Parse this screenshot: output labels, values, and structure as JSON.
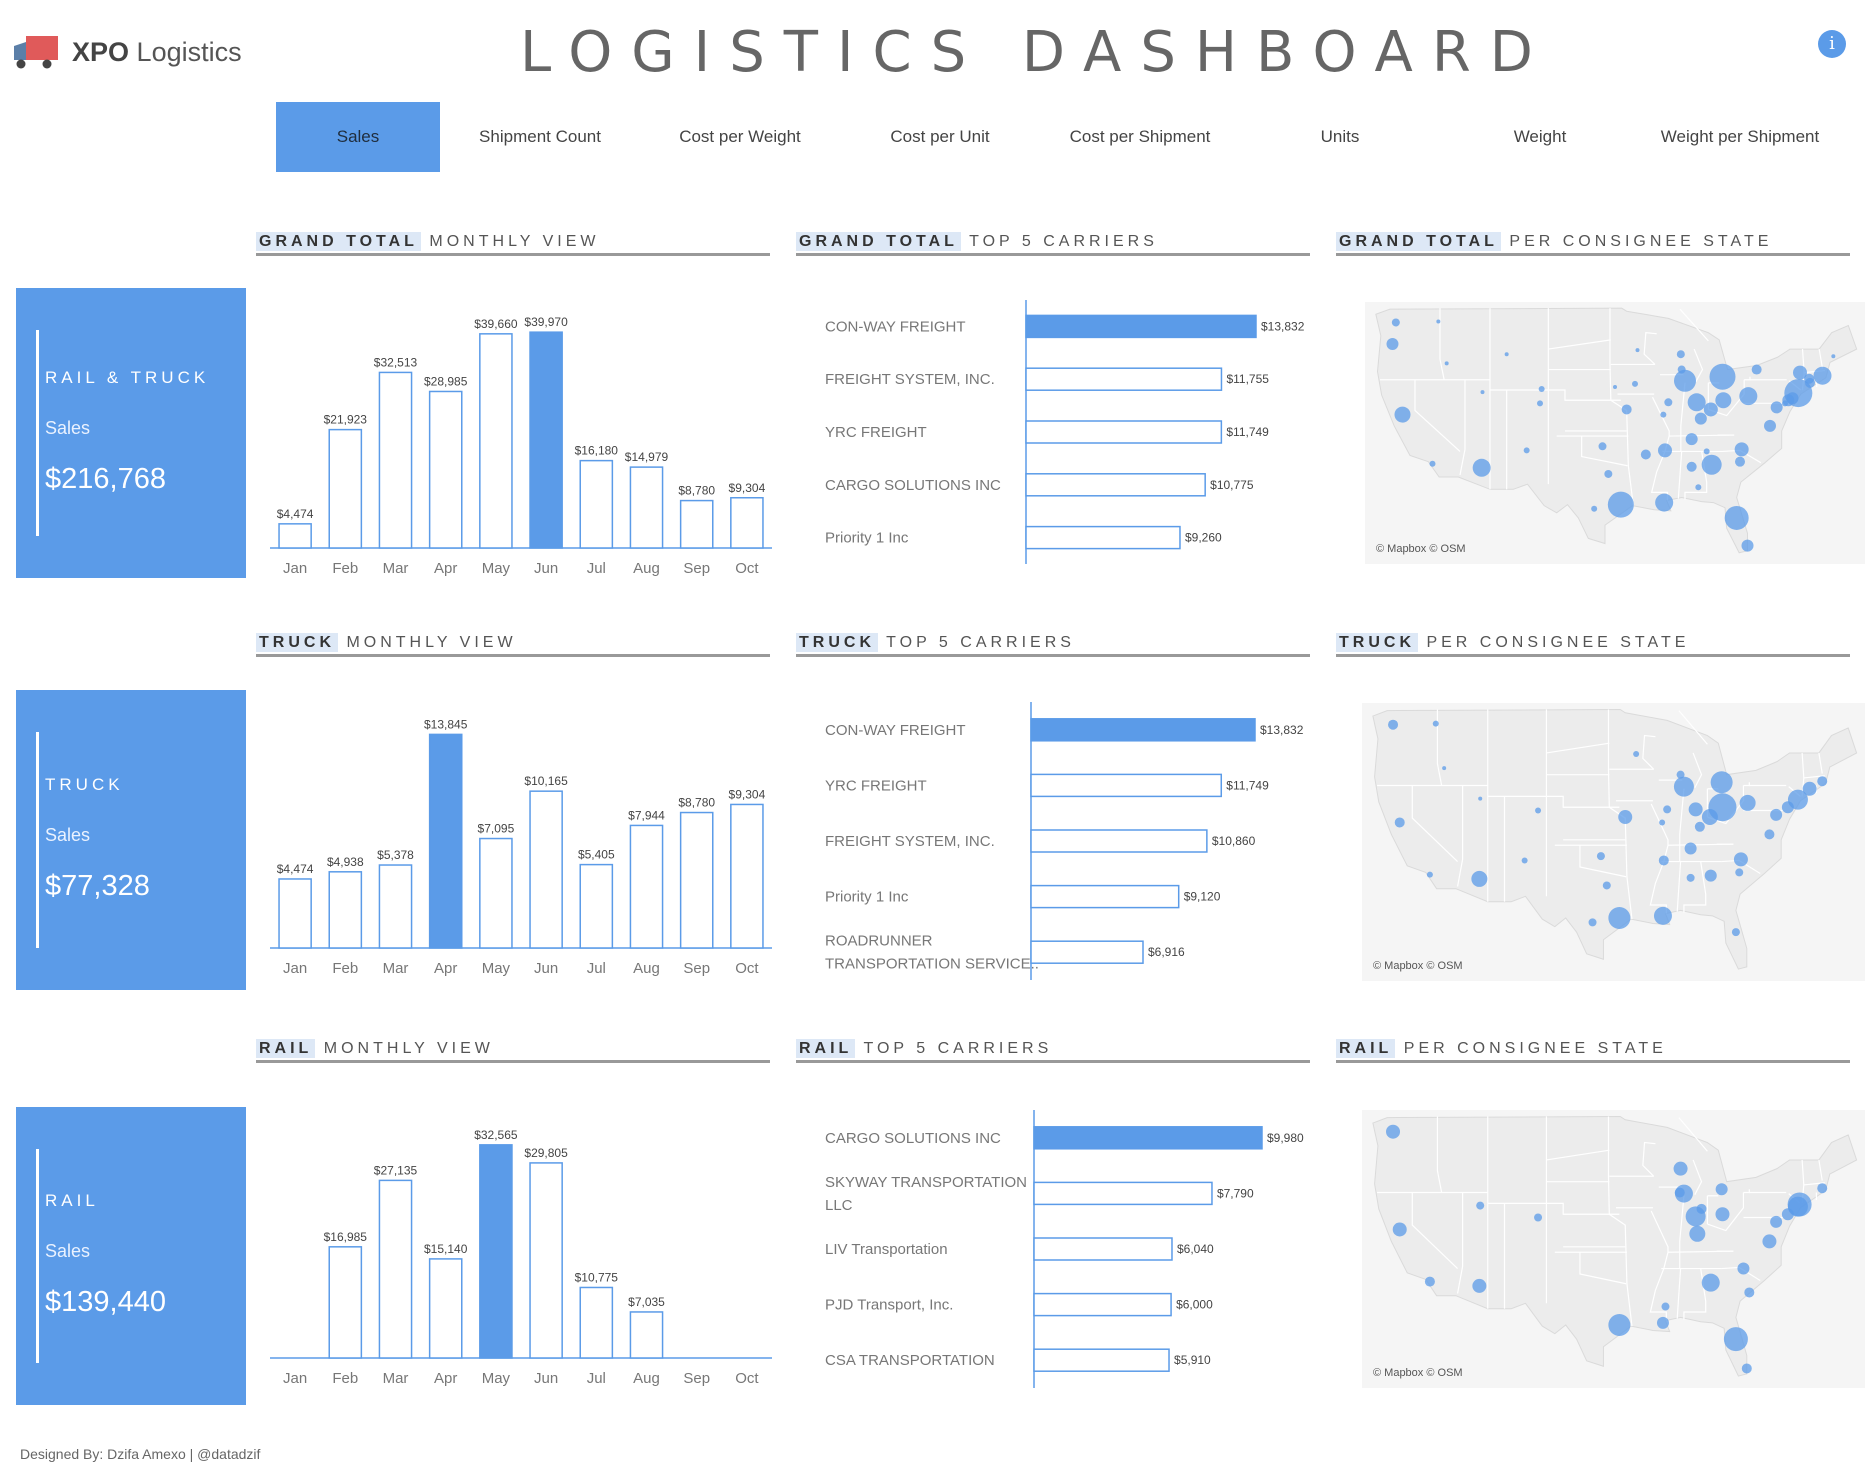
{
  "header": {
    "brand_bold": "XPO",
    "brand_rest": "Logistics",
    "title": "LOGISTICS DASHBOARD",
    "info_label": "i"
  },
  "tabs": [
    "Sales",
    "Shipment Count",
    "Cost per Weight",
    "Cost per Unit",
    "Cost per Shipment",
    "Units",
    "Weight",
    "Weight per Shipment"
  ],
  "active_tab": 0,
  "colors": {
    "accent": "#5b9be8",
    "outline": "#5b9be8",
    "map_land": "#ececec",
    "map_border": "#ffffff"
  },
  "rows": [
    {
      "kpi": {
        "name": "RAIL & TRUCK",
        "measure": "Sales",
        "value": "$216,768"
      },
      "monthly_heading": {
        "hl": "GRAND TOTAL",
        "rest": "MONTHLY VIEW"
      },
      "carriers_heading": {
        "hl": "GRAND TOTAL",
        "rest": "TOP 5 CARRIERS"
      },
      "map_heading": {
        "hl": "GRAND TOTAL",
        "rest": "PER CONSIGNEE STATE"
      },
      "map_attribution": "© Mapbox © OSM"
    },
    {
      "kpi": {
        "name": "TRUCK",
        "measure": "Sales",
        "value": "$77,328"
      },
      "monthly_heading": {
        "hl": "TRUCK",
        "rest": "MONTHLY VIEW"
      },
      "carriers_heading": {
        "hl": "TRUCK",
        "rest": "TOP 5 CARRIERS"
      },
      "map_heading": {
        "hl": "TRUCK",
        "rest": "PER CONSIGNEE STATE"
      },
      "map_attribution": "© Mapbox © OSM"
    },
    {
      "kpi": {
        "name": "RAIL",
        "measure": "Sales",
        "value": "$139,440"
      },
      "monthly_heading": {
        "hl": "RAIL",
        "rest": "MONTHLY VIEW"
      },
      "carriers_heading": {
        "hl": "RAIL",
        "rest": "TOP 5 CARRIERS"
      },
      "map_heading": {
        "hl": "RAIL",
        "rest": "PER CONSIGNEE STATE"
      },
      "map_attribution": "© Mapbox © OSM"
    }
  ],
  "chart_data": [
    {
      "type": "bar",
      "title": "GRAND TOTAL MONTHLY VIEW",
      "categories": [
        "Jan",
        "Feb",
        "Mar",
        "Apr",
        "May",
        "Jun",
        "Jul",
        "Aug",
        "Sep",
        "Oct"
      ],
      "values": [
        4474,
        21923,
        32513,
        28985,
        39660,
        39970,
        16180,
        14979,
        8780,
        9304
      ],
      "labels": [
        "$4,474",
        "$21,923",
        "$32,513",
        "$28,985",
        "$39,660",
        "$39,970",
        "$16,180",
        "$14,979",
        "$8,780",
        "$9,304"
      ],
      "highlight": 5,
      "ylim": [
        0,
        40000
      ]
    },
    {
      "type": "bar",
      "orientation": "horizontal",
      "title": "GRAND TOTAL TOP 5 CARRIERS",
      "categories": [
        [
          "CON-WAY FREIGHT"
        ],
        [
          "FREIGHT SYSTEM, INC."
        ],
        [
          "YRC FREIGHT"
        ],
        [
          "CARGO SOLUTIONS INC"
        ],
        [
          "Priority 1 Inc"
        ]
      ],
      "values": [
        13832,
        11755,
        11749,
        10775,
        9260
      ],
      "labels": [
        "$13,832",
        "$11,755",
        "$11,749",
        "$10,775",
        "$9,260"
      ],
      "highlight": 0
    },
    {
      "type": "scatter",
      "title": "GRAND TOTAL PER CONSIGNEE STATE",
      "points": [
        [
          -122.3,
          47.6,
          4
        ],
        [
          -122.7,
          45.5,
          6
        ],
        [
          -116.2,
          43.6,
          2
        ],
        [
          -117.2,
          47.7,
          2
        ],
        [
          -121.5,
          38.6,
          8
        ],
        [
          -117.9,
          33.8,
          3
        ],
        [
          -112.0,
          33.4,
          9
        ],
        [
          -111.9,
          40.8,
          2
        ],
        [
          -105,
          39.7,
          3
        ],
        [
          -106.6,
          35.1,
          3
        ],
        [
          -109.0,
          44.5,
          2
        ],
        [
          -104.8,
          41.1,
          3
        ],
        [
          -97.5,
          35.5,
          4
        ],
        [
          -96.8,
          32.8,
          4
        ],
        [
          -95.3,
          29.8,
          13
        ],
        [
          -96.0,
          41.3,
          2
        ],
        [
          -93.6,
          41.6,
          3
        ],
        [
          -93.3,
          44.9,
          2
        ],
        [
          -90.2,
          38.6,
          3
        ],
        [
          -94.6,
          39.1,
          5
        ],
        [
          -92.3,
          34.7,
          5
        ],
        [
          -90.1,
          30.0,
          9
        ],
        [
          -90.0,
          35.1,
          7
        ],
        [
          -88.0,
          43.0,
          4
        ],
        [
          -87.6,
          41.9,
          11
        ],
        [
          -86.2,
          39.8,
          9
        ],
        [
          -86.8,
          36.2,
          6
        ],
        [
          -86.8,
          33.5,
          5
        ],
        [
          -84.4,
          33.7,
          10
        ],
        [
          -84.5,
          39.1,
          7
        ],
        [
          -83.0,
          40.0,
          8
        ],
        [
          -83.1,
          42.3,
          13
        ],
        [
          -81.4,
          28.5,
          12
        ],
        [
          -80.1,
          25.8,
          6
        ],
        [
          -81.0,
          34.0,
          5
        ],
        [
          -80.8,
          35.2,
          7
        ],
        [
          -77.4,
          37.5,
          6
        ],
        [
          -76.6,
          39.3,
          6
        ],
        [
          -80.0,
          40.4,
          9
        ],
        [
          -79.0,
          43.0,
          5
        ],
        [
          -75.2,
          40.0,
          6
        ],
        [
          -74.0,
          40.7,
          14
        ],
        [
          -73.8,
          42.7,
          7
        ],
        [
          -71.1,
          42.4,
          9
        ],
        [
          -72.6,
          41.7,
          5
        ],
        [
          -88.1,
          44.5,
          4
        ],
        [
          -85.7,
          38.2,
          6
        ],
        [
          -69.8,
          44.3,
          2
        ],
        [
          -72.7,
          42.1,
          5
        ],
        [
          -74.7,
          40.2,
          6
        ],
        [
          -75.6,
          39.7,
          3
        ],
        [
          -89.6,
          39.8,
          4
        ],
        [
          -85.0,
          35.0,
          3
        ],
        [
          -86.0,
          31.5,
          3
        ],
        [
          -98.5,
          29.4,
          3
        ]
      ]
    },
    {
      "type": "bar",
      "title": "TRUCK MONTHLY VIEW",
      "categories": [
        "Jan",
        "Feb",
        "Mar",
        "Apr",
        "May",
        "Jun",
        "Jul",
        "Aug",
        "Sep",
        "Oct"
      ],
      "values": [
        4474,
        4938,
        5378,
        13845,
        7095,
        10165,
        5405,
        7944,
        8780,
        9304
      ],
      "labels": [
        "$4,474",
        "$4,938",
        "$5,378",
        "$13,845",
        "$7,095",
        "$10,165",
        "$5,405",
        "$7,944",
        "$8,780",
        "$9,304"
      ],
      "highlight": 3,
      "ylim": [
        0,
        14000
      ]
    },
    {
      "type": "bar",
      "orientation": "horizontal",
      "title": "TRUCK TOP 5 CARRIERS",
      "categories": [
        [
          "CON-WAY FREIGHT"
        ],
        [
          "YRC FREIGHT"
        ],
        [
          "FREIGHT SYSTEM, INC."
        ],
        [
          "Priority 1 Inc"
        ],
        [
          "ROADRUNNER",
          "TRANSPORTATION SERVICE.."
        ]
      ],
      "values": [
        13832,
        11749,
        10860,
        9120,
        6916
      ],
      "labels": [
        "$13,832",
        "$11,749",
        "$10,860",
        "$9,120",
        "$6,916"
      ],
      "highlight": 0
    },
    {
      "type": "scatter",
      "title": "TRUCK PER CONSIGNEE STATE",
      "points": [
        [
          -122.3,
          47.6,
          5
        ],
        [
          -121.5,
          38.6,
          5
        ],
        [
          -117.2,
          47.7,
          3
        ],
        [
          -116.2,
          43.6,
          2
        ],
        [
          -117.9,
          33.8,
          3
        ],
        [
          -112.0,
          33.4,
          8
        ],
        [
          -111.9,
          40.8,
          2
        ],
        [
          -105,
          39.7,
          3
        ],
        [
          -106.6,
          35.1,
          3
        ],
        [
          -97.5,
          35.5,
          4
        ],
        [
          -95.3,
          29.8,
          11
        ],
        [
          -94.6,
          39.1,
          7
        ],
        [
          -93.3,
          44.9,
          3
        ],
        [
          -90.2,
          38.6,
          3
        ],
        [
          -90.1,
          30.0,
          9
        ],
        [
          -90.0,
          35.1,
          5
        ],
        [
          -87.6,
          41.9,
          10
        ],
        [
          -86.2,
          39.8,
          7
        ],
        [
          -86.8,
          36.2,
          6
        ],
        [
          -86.8,
          33.5,
          4
        ],
        [
          -84.4,
          33.7,
          6
        ],
        [
          -84.5,
          39.1,
          8
        ],
        [
          -83.0,
          40.0,
          14
        ],
        [
          -83.1,
          42.3,
          11
        ],
        [
          -81.4,
          28.5,
          4
        ],
        [
          -81.0,
          34.0,
          4
        ],
        [
          -80.8,
          35.2,
          7
        ],
        [
          -77.4,
          37.5,
          5
        ],
        [
          -76.6,
          39.3,
          6
        ],
        [
          -80.0,
          40.4,
          8
        ],
        [
          -75.2,
          40.0,
          6
        ],
        [
          -74.0,
          40.7,
          10
        ],
        [
          -71.1,
          42.4,
          5
        ],
        [
          -72.6,
          41.7,
          7
        ],
        [
          -88.0,
          43.0,
          4
        ],
        [
          -85.7,
          38.2,
          5
        ],
        [
          -89.6,
          39.8,
          4
        ],
        [
          -98.5,
          29.4,
          4
        ],
        [
          -96.8,
          32.8,
          4
        ]
      ]
    },
    {
      "type": "bar",
      "title": "RAIL MONTHLY VIEW",
      "categories": [
        "Jan",
        "Feb",
        "Mar",
        "Apr",
        "May",
        "Jun",
        "Jul",
        "Aug",
        "Sep",
        "Oct"
      ],
      "values": [
        0,
        16985,
        27135,
        15140,
        32565,
        29805,
        10775,
        7035,
        0,
        0
      ],
      "labels": [
        "",
        "$16,985",
        "$27,135",
        "$15,140",
        "$32,565",
        "$29,805",
        "$10,775",
        "$7,035",
        "",
        ""
      ],
      "highlight": 4,
      "ylim": [
        0,
        33000
      ]
    },
    {
      "type": "bar",
      "orientation": "horizontal",
      "title": "RAIL TOP 5 CARRIERS",
      "categories": [
        [
          "CARGO SOLUTIONS INC"
        ],
        [
          "SKYWAY TRANSPORTATION",
          "LLC"
        ],
        [
          "LIV Transportation"
        ],
        [
          "PJD Transport, Inc."
        ],
        [
          "CSA TRANSPORTATION"
        ]
      ],
      "values": [
        9980,
        7790,
        6040,
        6000,
        5910
      ],
      "labels": [
        "$9,980",
        "$7,790",
        "$6,040",
        "$6,000",
        "$5,910"
      ],
      "highlight": 0
    },
    {
      "type": "scatter",
      "title": "RAIL PER CONSIGNEE STATE",
      "points": [
        [
          -122.3,
          47.6,
          7
        ],
        [
          -121.5,
          38.6,
          7
        ],
        [
          -117.9,
          33.8,
          5
        ],
        [
          -112.0,
          33.4,
          7
        ],
        [
          -111.9,
          40.8,
          4
        ],
        [
          -105,
          39.7,
          4
        ],
        [
          -95.3,
          29.8,
          11
        ],
        [
          -90.1,
          30.0,
          6
        ],
        [
          -89.8,
          31.5,
          4
        ],
        [
          -87.6,
          41.9,
          9
        ],
        [
          -88.0,
          44.2,
          7
        ],
        [
          -86.2,
          39.8,
          10
        ],
        [
          -85.5,
          40.5,
          5
        ],
        [
          -84.4,
          33.7,
          9
        ],
        [
          -81.4,
          28.5,
          12
        ],
        [
          -80.1,
          25.8,
          5
        ],
        [
          -80.5,
          35.0,
          6
        ],
        [
          -79.8,
          32.8,
          5
        ],
        [
          -83.1,
          42.3,
          6
        ],
        [
          -83.0,
          40.0,
          7
        ],
        [
          -86.0,
          38.2,
          8
        ],
        [
          -77.4,
          37.5,
          7
        ],
        [
          -76.6,
          39.3,
          6
        ],
        [
          -75.2,
          40.0,
          6
        ],
        [
          -74.0,
          40.7,
          10
        ],
        [
          -73.8,
          40.9,
          12
        ],
        [
          -71.1,
          42.4,
          5
        ],
        [
          -88.1,
          42.0,
          5
        ]
      ]
    }
  ],
  "footer": {
    "credit": "Designed By: Dzifa Amexo | @datadzif"
  }
}
